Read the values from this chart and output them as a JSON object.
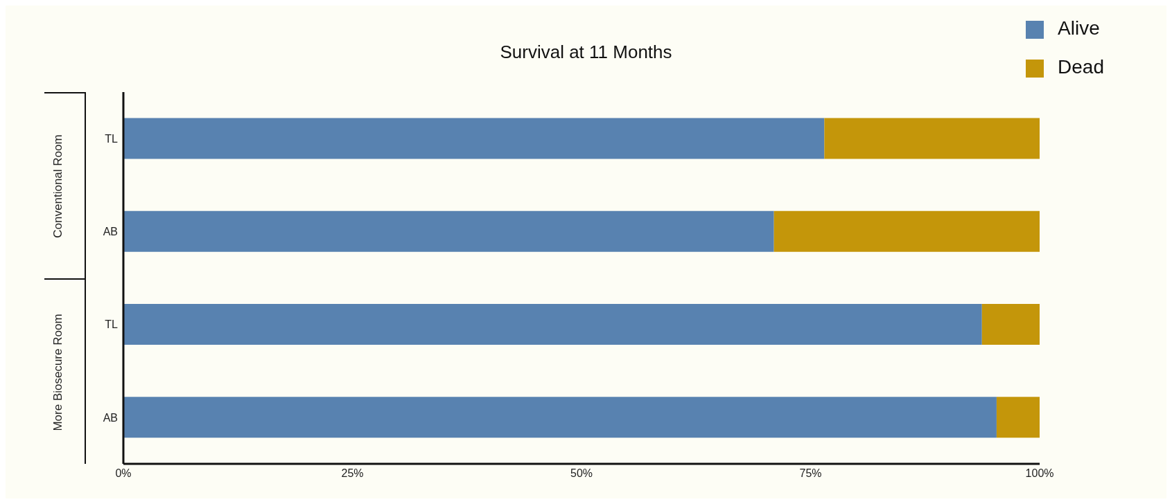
{
  "chart_data": {
    "type": "bar",
    "title": "Survival at 11 Months",
    "orientation": "horizontal",
    "stacked": true,
    "categories": [
      "TL",
      "AB",
      "TL",
      "AB"
    ],
    "series": [
      {
        "name": "Alive",
        "color": "#5882b0",
        "values": [
          76.5,
          71,
          93.7,
          95.3
        ]
      },
      {
        "name": "Dead",
        "color": "#c4960a",
        "values": [
          23.5,
          29,
          6.3,
          4.7
        ]
      }
    ],
    "annotations": [
      "Conventional Room",
      "More Biosecure Room"
    ],
    "xlim": [
      0,
      100
    ],
    "xticks": [
      {
        "value": 0,
        "label": "0%"
      },
      {
        "value": 25,
        "label": "25%"
      },
      {
        "value": 50,
        "label": "50%"
      },
      {
        "value": 75,
        "label": "75%"
      },
      {
        "value": 100,
        "label": "100%"
      }
    ],
    "legend": "top right",
    "grid": false
  }
}
